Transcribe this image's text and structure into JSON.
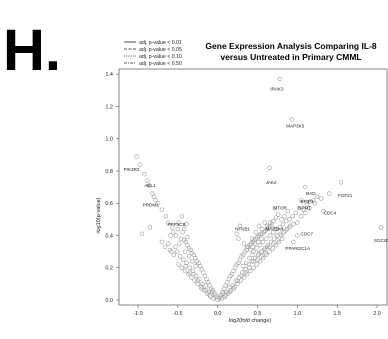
{
  "panel_letter": "H.",
  "chart_data": {
    "type": "scatter",
    "title": "Gene Expression Analysis Comparing IL-8 versus Untreated in Primary CMML",
    "title_lines": [
      "Gene Expression Analysis Comparing IL-8",
      "versus Untreated in Primary CMML"
    ],
    "xlabel": "log2(fold change)",
    "ylabel": "-log10(p-value)",
    "xlim": [
      -1.1,
      2.05
    ],
    "ylim": [
      0,
      1.42
    ],
    "x_ticks": [
      -1.0,
      -0.5,
      0.0,
      0.5,
      1.0,
      1.5,
      2.0
    ],
    "x_tick_labels": [
      "-1.0",
      "-0.5",
      "0.0",
      "0.5",
      "1.0",
      "1.5",
      "2.0"
    ],
    "y_ticks": [
      0.0,
      0.2,
      0.4,
      0.6,
      0.8,
      1.0,
      1.2,
      1.4
    ],
    "y_tick_labels": [
      "0.0",
      "0.2",
      "0.4",
      "0.6",
      "0.8",
      "1.0",
      "1.2",
      "1.4"
    ],
    "legend_position": "top-left, outside plot",
    "legend": [
      {
        "label": "adj. p-value < 0.01",
        "dash": "solid"
      },
      {
        "label": "adj. p-value < 0.05",
        "dash": "dashed"
      },
      {
        "label": "adj. p-value < 0.10",
        "dash": "dotted"
      },
      {
        "label": "adj. p-value < 0.50",
        "dash": "dotdash"
      }
    ],
    "marker": "open circle",
    "marker_color": "#999999",
    "labeled_points": [
      {
        "label": "IRAK3",
        "x": 0.78,
        "y": 1.37,
        "lx": 0.66,
        "ly": 1.3
      },
      {
        "label": "MAP3K5",
        "x": 0.93,
        "y": 1.12,
        "lx": 0.86,
        "ly": 1.07
      },
      {
        "label": "PIK3R2",
        "x": -1.02,
        "y": 0.89,
        "lx": -1.18,
        "ly": 0.8
      },
      {
        "label": "ABL1",
        "x": -0.88,
        "y": 0.74,
        "lx": -0.92,
        "ly": 0.7
      },
      {
        "label": "PRDM1",
        "x": -0.8,
        "y": 0.64,
        "lx": -0.94,
        "ly": 0.58
      },
      {
        "label": "JAK2",
        "x": 0.65,
        "y": 0.82,
        "lx": 0.6,
        "ly": 0.72
      },
      {
        "label": "BAD",
        "x": 1.1,
        "y": 0.7,
        "lx": 1.11,
        "ly": 0.65
      },
      {
        "label": "FGF21",
        "x": 1.55,
        "y": 0.73,
        "lx": 1.51,
        "ly": 0.64
      },
      {
        "label": "BRIP1",
        "x": 1.05,
        "y": 0.62,
        "lx": 1.04,
        "ly": 0.6
      },
      {
        "label": "NPM1",
        "x": 1.02,
        "y": 0.57,
        "lx": 1.01,
        "ly": 0.56
      },
      {
        "label": "MTOR",
        "x": 0.72,
        "y": 0.57,
        "lx": 0.7,
        "ly": 0.56
      },
      {
        "label": "CDC4",
        "x": 1.33,
        "y": 0.55,
        "lx": 1.33,
        "ly": 0.53
      },
      {
        "label": "SOCS3",
        "x": 2.05,
        "y": 0.45,
        "lx": 1.96,
        "ly": 0.36
      },
      {
        "label": "PPP3CB",
        "x": -0.45,
        "y": 0.52,
        "lx": -0.63,
        "ly": 0.46
      },
      {
        "label": "NFKB1",
        "x": 0.28,
        "y": 0.46,
        "lx": 0.22,
        "ly": 0.43
      },
      {
        "label": "MAP2K4",
        "x": 0.72,
        "y": 0.44,
        "lx": 0.6,
        "ly": 0.43
      },
      {
        "label": "CDC7",
        "x": 1.0,
        "y": 0.4,
        "lx": 1.04,
        "ly": 0.4
      },
      {
        "label": "PPARGC1A",
        "x": 0.95,
        "y": 0.36,
        "lx": 0.85,
        "ly": 0.31
      }
    ],
    "points": [
      [
        0.0,
        0.0
      ],
      [
        0.02,
        0.01
      ],
      [
        -0.02,
        0.02
      ],
      [
        0.04,
        0.03
      ],
      [
        -0.04,
        0.04
      ],
      [
        0.06,
        0.05
      ],
      [
        -0.06,
        0.06
      ],
      [
        0.08,
        0.07
      ],
      [
        -0.08,
        0.07
      ],
      [
        0.1,
        0.09
      ],
      [
        -0.1,
        0.09
      ],
      [
        0.12,
        0.11
      ],
      [
        -0.12,
        0.11
      ],
      [
        0.14,
        0.13
      ],
      [
        -0.14,
        0.13
      ],
      [
        0.16,
        0.15
      ],
      [
        -0.16,
        0.15
      ],
      [
        0.18,
        0.16
      ],
      [
        -0.18,
        0.17
      ],
      [
        0.2,
        0.18
      ],
      [
        -0.2,
        0.19
      ],
      [
        0.22,
        0.2
      ],
      [
        -0.22,
        0.21
      ],
      [
        0.24,
        0.22
      ],
      [
        -0.24,
        0.23
      ],
      [
        0.26,
        0.23
      ],
      [
        -0.26,
        0.24
      ],
      [
        0.28,
        0.25
      ],
      [
        -0.28,
        0.26
      ],
      [
        0.3,
        0.27
      ],
      [
        -0.3,
        0.28
      ],
      [
        0.32,
        0.28
      ],
      [
        -0.32,
        0.29
      ],
      [
        0.34,
        0.3
      ],
      [
        -0.34,
        0.31
      ],
      [
        0.36,
        0.31
      ],
      [
        -0.36,
        0.32
      ],
      [
        0.38,
        0.33
      ],
      [
        -0.38,
        0.34
      ],
      [
        0.4,
        0.34
      ],
      [
        -0.4,
        0.36
      ],
      [
        0.42,
        0.35
      ],
      [
        -0.42,
        0.37
      ],
      [
        0.44,
        0.36
      ],
      [
        0.46,
        0.37
      ],
      [
        0.48,
        0.38
      ],
      [
        0.5,
        0.39
      ],
      [
        0.52,
        0.4
      ],
      [
        0.54,
        0.41
      ],
      [
        0.56,
        0.41
      ],
      [
        0.58,
        0.42
      ],
      [
        0.6,
        0.43
      ],
      [
        0.62,
        0.44
      ],
      [
        0.64,
        0.45
      ],
      [
        0.66,
        0.46
      ],
      [
        0.68,
        0.47
      ],
      [
        0.05,
        0.01
      ],
      [
        -0.05,
        0.01
      ],
      [
        0.09,
        0.02
      ],
      [
        -0.09,
        0.02
      ],
      [
        0.13,
        0.04
      ],
      [
        -0.13,
        0.04
      ],
      [
        0.17,
        0.06
      ],
      [
        -0.17,
        0.06
      ],
      [
        0.21,
        0.08
      ],
      [
        -0.21,
        0.08
      ],
      [
        0.25,
        0.1
      ],
      [
        -0.25,
        0.1
      ],
      [
        0.29,
        0.12
      ],
      [
        -0.29,
        0.12
      ],
      [
        0.33,
        0.14
      ],
      [
        -0.33,
        0.14
      ],
      [
        0.37,
        0.16
      ],
      [
        -0.37,
        0.16
      ],
      [
        0.41,
        0.18
      ],
      [
        -0.41,
        0.18
      ],
      [
        0.45,
        0.2
      ],
      [
        -0.45,
        0.2
      ],
      [
        0.49,
        0.22
      ],
      [
        -0.49,
        0.22
      ],
      [
        0.53,
        0.24
      ],
      [
        0.57,
        0.26
      ],
      [
        0.61,
        0.28
      ],
      [
        0.65,
        0.3
      ],
      [
        0.69,
        0.32
      ],
      [
        0.73,
        0.34
      ],
      [
        0.77,
        0.36
      ],
      [
        0.81,
        0.38
      ],
      [
        0.11,
        0.05
      ],
      [
        -0.11,
        0.05
      ],
      [
        0.19,
        0.09
      ],
      [
        -0.19,
        0.1
      ],
      [
        0.27,
        0.14
      ],
      [
        -0.27,
        0.15
      ],
      [
        0.35,
        0.19
      ],
      [
        -0.35,
        0.2
      ],
      [
        0.43,
        0.24
      ],
      [
        -0.43,
        0.25
      ],
      [
        0.51,
        0.28
      ],
      [
        -0.51,
        0.3
      ],
      [
        0.59,
        0.32
      ],
      [
        0.67,
        0.36
      ],
      [
        0.75,
        0.4
      ],
      [
        0.83,
        0.42
      ],
      [
        0.03,
        0.02
      ],
      [
        -0.03,
        0.03
      ],
      [
        0.07,
        0.04
      ],
      [
        -0.07,
        0.05
      ],
      [
        0.15,
        0.08
      ],
      [
        -0.15,
        0.09
      ],
      [
        0.23,
        0.12
      ],
      [
        -0.23,
        0.13
      ],
      [
        0.31,
        0.17
      ],
      [
        -0.31,
        0.18
      ],
      [
        0.39,
        0.22
      ],
      [
        -0.39,
        0.23
      ],
      [
        0.47,
        0.26
      ],
      [
        -0.47,
        0.27
      ],
      [
        0.55,
        0.3
      ],
      [
        0.63,
        0.34
      ],
      [
        0.71,
        0.38
      ],
      [
        0.79,
        0.41
      ],
      [
        0.87,
        0.44
      ],
      [
        0.91,
        0.46
      ],
      [
        -0.55,
        0.28
      ],
      [
        -0.58,
        0.3
      ],
      [
        -0.6,
        0.31
      ],
      [
        -0.53,
        0.33
      ],
      [
        -0.48,
        0.35
      ],
      [
        -0.46,
        0.38
      ],
      [
        -0.52,
        0.4
      ],
      [
        -0.56,
        0.42
      ],
      [
        -0.44,
        0.42
      ],
      [
        -0.5,
        0.44
      ],
      [
        -0.62,
        0.35
      ],
      [
        -0.66,
        0.33
      ],
      [
        -0.7,
        0.36
      ],
      [
        -0.57,
        0.45
      ],
      [
        -0.49,
        0.48
      ],
      [
        -0.41,
        0.3
      ],
      [
        -0.38,
        0.39
      ],
      [
        -0.36,
        0.27
      ],
      [
        0.45,
        0.3
      ],
      [
        0.49,
        0.32
      ],
      [
        0.53,
        0.34
      ],
      [
        0.57,
        0.36
      ],
      [
        0.61,
        0.38
      ],
      [
        0.52,
        0.29
      ],
      [
        0.58,
        0.31
      ],
      [
        0.62,
        0.33
      ],
      [
        0.66,
        0.4
      ],
      [
        0.7,
        0.42
      ],
      [
        0.74,
        0.44
      ],
      [
        0.78,
        0.45
      ],
      [
        0.82,
        0.47
      ],
      [
        0.86,
        0.49
      ],
      [
        0.9,
        0.5
      ],
      [
        0.94,
        0.52
      ],
      [
        0.98,
        0.54
      ],
      [
        1.08,
        0.56
      ],
      [
        1.12,
        0.59
      ],
      [
        1.16,
        0.61
      ],
      [
        1.2,
        0.62
      ],
      [
        1.25,
        0.64
      ],
      [
        0.88,
        0.55
      ],
      [
        0.84,
        0.52
      ],
      [
        0.8,
        0.5
      ],
      [
        0.76,
        0.53
      ],
      [
        0.73,
        0.51
      ],
      [
        0.7,
        0.49
      ],
      [
        0.66,
        0.48
      ],
      [
        0.62,
        0.46
      ],
      [
        0.59,
        0.48
      ],
      [
        0.56,
        0.44
      ],
      [
        0.52,
        0.46
      ],
      [
        0.48,
        0.42
      ],
      [
        -0.86,
        0.71
      ],
      [
        -0.92,
        0.78
      ],
      [
        -0.97,
        0.84
      ],
      [
        -0.75,
        0.6
      ],
      [
        -0.7,
        0.56
      ],
      [
        -0.65,
        0.52
      ],
      [
        -0.62,
        0.48
      ],
      [
        -0.59,
        0.4
      ],
      [
        -0.82,
        0.66
      ],
      [
        -0.78,
        0.62
      ],
      [
        0.36,
        0.23
      ],
      [
        0.4,
        0.26
      ],
      [
        0.44,
        0.28
      ],
      [
        0.32,
        0.21
      ],
      [
        -0.28,
        0.21
      ],
      [
        -0.32,
        0.24
      ],
      [
        0.1,
        0.03
      ],
      [
        -0.1,
        0.03
      ],
      [
        0.15,
        0.05
      ],
      [
        -0.15,
        0.06
      ],
      [
        0.2,
        0.07
      ],
      [
        -0.2,
        0.07
      ],
      [
        0.25,
        0.12
      ],
      [
        -0.25,
        0.12
      ],
      [
        0.3,
        0.15
      ],
      [
        -0.3,
        0.16
      ],
      [
        0.35,
        0.17
      ],
      [
        -0.35,
        0.17
      ],
      [
        0.4,
        0.2
      ],
      [
        -0.4,
        0.21
      ],
      [
        0.45,
        0.24
      ],
      [
        0.5,
        0.25
      ],
      [
        0.55,
        0.27
      ],
      [
        0.6,
        0.29
      ],
      [
        0.65,
        0.33
      ],
      [
        0.7,
        0.35
      ],
      [
        0.75,
        0.37
      ],
      [
        0.8,
        0.4
      ],
      [
        0.85,
        0.43
      ],
      [
        0.9,
        0.45
      ],
      [
        0.95,
        0.47
      ],
      [
        1.0,
        0.48
      ],
      [
        1.05,
        0.52
      ],
      [
        1.1,
        0.54
      ],
      [
        1.15,
        0.57
      ],
      [
        1.22,
        0.6
      ],
      [
        1.3,
        0.63
      ],
      [
        1.4,
        0.66
      ],
      [
        -0.95,
        0.41
      ],
      [
        -0.85,
        0.45
      ],
      [
        -0.42,
        0.44
      ],
      [
        -0.39,
        0.47
      ],
      [
        0.26,
        0.38
      ],
      [
        0.24,
        0.41
      ],
      [
        0.33,
        0.35
      ],
      [
        0.37,
        0.33
      ],
      [
        0.41,
        0.31
      ],
      [
        0.43,
        0.38
      ],
      [
        0.47,
        0.35
      ],
      [
        0.51,
        0.36
      ],
      [
        0.55,
        0.38
      ],
      [
        0.44,
        0.33
      ]
    ]
  }
}
